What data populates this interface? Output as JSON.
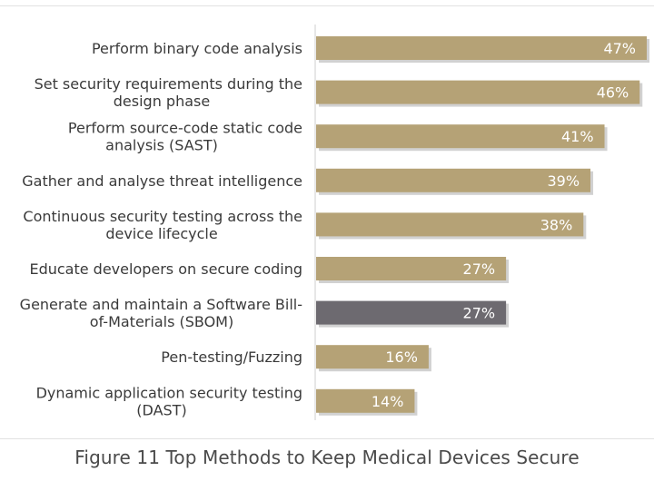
{
  "caption": "Figure 11 Top Methods to Keep Medical Devices Secure",
  "colors": {
    "bar": "#b5a276",
    "highlight": "#6d6a70",
    "shadow": "#9a9a9a",
    "axis": "#cfcfcf"
  },
  "chart_data": {
    "type": "bar",
    "orientation": "horizontal",
    "title": "",
    "xlabel": "",
    "ylabel": "",
    "xlim": [
      0,
      47
    ],
    "unit": "%",
    "categories": [
      [
        "Perform binary code analysis"
      ],
      [
        "Set security requirements during the",
        "design phase"
      ],
      [
        "Perform source-code static code",
        "analysis (SAST)"
      ],
      [
        "Gather and analyse threat intelligence"
      ],
      [
        "Continuous security testing across the",
        "device lifecycle"
      ],
      [
        "Educate developers on secure coding"
      ],
      [
        "Generate and maintain a Software Bill-",
        "of-Materials (SBOM)"
      ],
      [
        "Pen-testing/Fuzzing"
      ],
      [
        "Dynamic application security testing",
        "(DAST)"
      ]
    ],
    "values": [
      47,
      46,
      41,
      39,
      38,
      27,
      27,
      16,
      14
    ],
    "value_labels": [
      "47%",
      "46%",
      "41%",
      "39%",
      "38%",
      "27%",
      "27%",
      "16%",
      "14%"
    ],
    "highlighted": [
      false,
      false,
      false,
      false,
      false,
      false,
      true,
      false,
      false
    ]
  }
}
